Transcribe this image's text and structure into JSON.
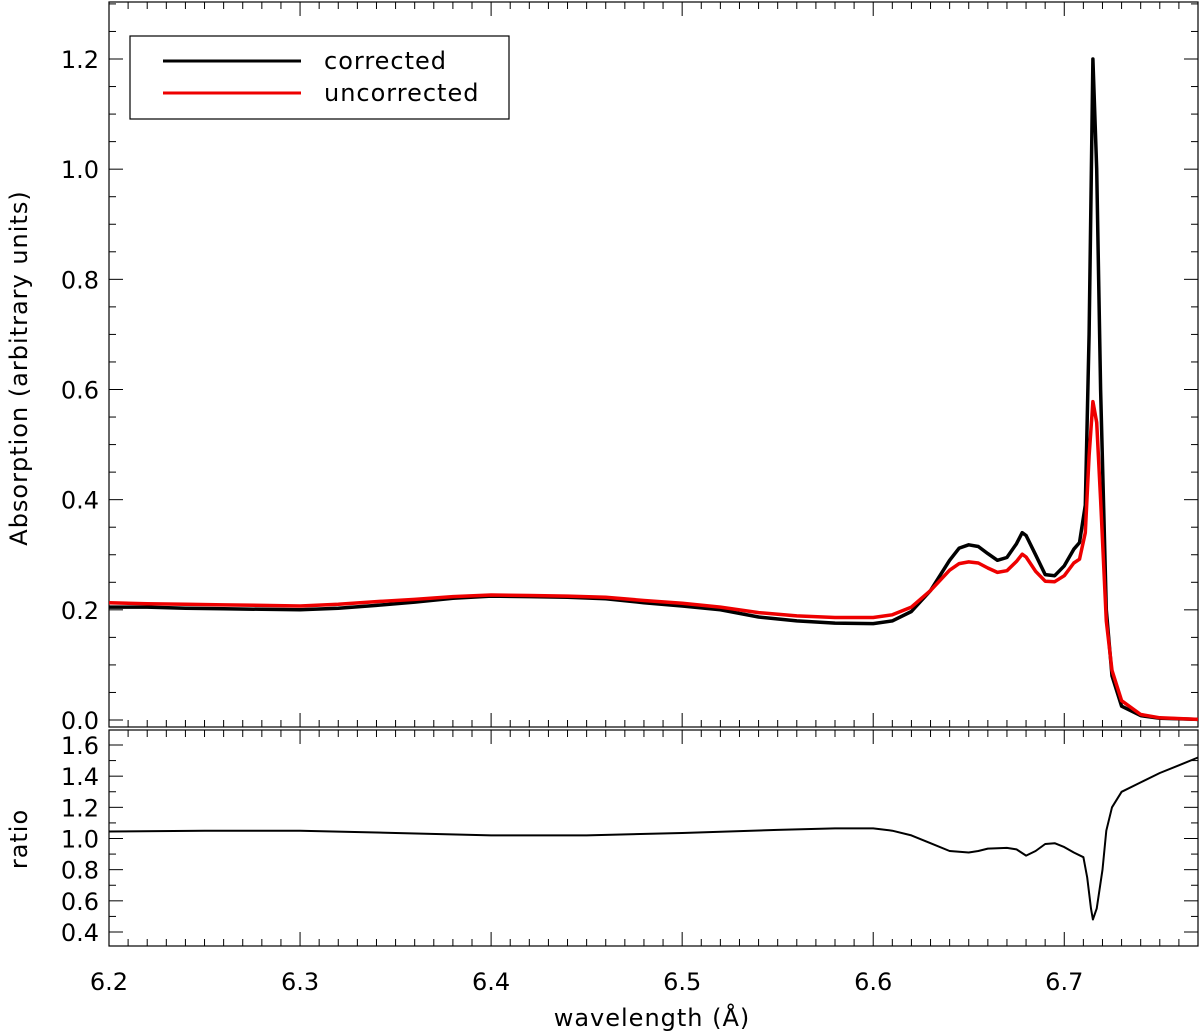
{
  "chart_data": [
    {
      "type": "line",
      "panel": "top",
      "ylabel": "Absorption (arbitrary units)",
      "xlim": [
        6.2,
        6.77
      ],
      "ylim": [
        0.0,
        1.3
      ],
      "yticks": [
        "0.0",
        "0.2",
        "0.4",
        "0.6",
        "0.8",
        "1.0",
        "1.2"
      ],
      "legend": {
        "placement": "top-left"
      },
      "series": [
        {
          "name": "corrected",
          "color": "#000000",
          "points": [
            [
              6.2,
              0.205
            ],
            [
              6.22,
              0.205
            ],
            [
              6.24,
              0.203
            ],
            [
              6.26,
              0.202
            ],
            [
              6.28,
              0.201
            ],
            [
              6.3,
              0.2
            ],
            [
              6.32,
              0.203
            ],
            [
              6.34,
              0.208
            ],
            [
              6.36,
              0.214
            ],
            [
              6.38,
              0.221
            ],
            [
              6.4,
              0.225
            ],
            [
              6.42,
              0.224
            ],
            [
              6.44,
              0.223
            ],
            [
              6.46,
              0.22
            ],
            [
              6.48,
              0.213
            ],
            [
              6.5,
              0.207
            ],
            [
              6.52,
              0.2
            ],
            [
              6.54,
              0.187
            ],
            [
              6.56,
              0.18
            ],
            [
              6.58,
              0.176
            ],
            [
              6.6,
              0.175
            ],
            [
              6.61,
              0.18
            ],
            [
              6.62,
              0.197
            ],
            [
              6.63,
              0.235
            ],
            [
              6.64,
              0.29
            ],
            [
              6.645,
              0.312
            ],
            [
              6.65,
              0.318
            ],
            [
              6.655,
              0.315
            ],
            [
              6.66,
              0.302
            ],
            [
              6.665,
              0.29
            ],
            [
              6.67,
              0.295
            ],
            [
              6.675,
              0.32
            ],
            [
              6.678,
              0.34
            ],
            [
              6.68,
              0.335
            ],
            [
              6.685,
              0.3
            ],
            [
              6.69,
              0.264
            ],
            [
              6.695,
              0.262
            ],
            [
              6.7,
              0.28
            ],
            [
              6.705,
              0.31
            ],
            [
              6.708,
              0.322
            ],
            [
              6.711,
              0.39
            ],
            [
              6.713,
              0.7
            ],
            [
              6.715,
              1.2
            ],
            [
              6.717,
              1.0
            ],
            [
              6.719,
              0.6
            ],
            [
              6.722,
              0.2
            ],
            [
              6.725,
              0.08
            ],
            [
              6.73,
              0.025
            ],
            [
              6.74,
              0.008
            ],
            [
              6.75,
              0.003
            ],
            [
              6.77,
              0.001
            ]
          ]
        },
        {
          "name": "uncorrected",
          "color": "#ee0000",
          "points": [
            [
              6.2,
              0.213
            ],
            [
              6.22,
              0.211
            ],
            [
              6.24,
              0.21
            ],
            [
              6.26,
              0.209
            ],
            [
              6.28,
              0.208
            ],
            [
              6.3,
              0.207
            ],
            [
              6.32,
              0.21
            ],
            [
              6.34,
              0.215
            ],
            [
              6.36,
              0.219
            ],
            [
              6.38,
              0.224
            ],
            [
              6.4,
              0.227
            ],
            [
              6.42,
              0.226
            ],
            [
              6.44,
              0.225
            ],
            [
              6.46,
              0.223
            ],
            [
              6.48,
              0.217
            ],
            [
              6.5,
              0.212
            ],
            [
              6.52,
              0.205
            ],
            [
              6.54,
              0.195
            ],
            [
              6.56,
              0.189
            ],
            [
              6.58,
              0.186
            ],
            [
              6.6,
              0.186
            ],
            [
              6.61,
              0.191
            ],
            [
              6.62,
              0.205
            ],
            [
              6.63,
              0.235
            ],
            [
              6.64,
              0.272
            ],
            [
              6.645,
              0.284
            ],
            [
              6.65,
              0.287
            ],
            [
              6.655,
              0.285
            ],
            [
              6.66,
              0.276
            ],
            [
              6.665,
              0.268
            ],
            [
              6.67,
              0.271
            ],
            [
              6.675,
              0.288
            ],
            [
              6.678,
              0.301
            ],
            [
              6.68,
              0.296
            ],
            [
              6.685,
              0.27
            ],
            [
              6.69,
              0.252
            ],
            [
              6.695,
              0.251
            ],
            [
              6.7,
              0.262
            ],
            [
              6.705,
              0.285
            ],
            [
              6.708,
              0.292
            ],
            [
              6.711,
              0.34
            ],
            [
              6.713,
              0.48
            ],
            [
              6.715,
              0.578
            ],
            [
              6.717,
              0.54
            ],
            [
              6.719,
              0.4
            ],
            [
              6.722,
              0.18
            ],
            [
              6.725,
              0.09
            ],
            [
              6.73,
              0.035
            ],
            [
              6.74,
              0.01
            ],
            [
              6.75,
              0.004
            ],
            [
              6.77,
              0.001
            ]
          ]
        }
      ]
    },
    {
      "type": "line",
      "panel": "bottom",
      "xlabel": "wavelength (Å)",
      "ylabel": "ratio",
      "xlim": [
        6.2,
        6.77
      ],
      "ylim": [
        0.3,
        1.7
      ],
      "xticks": [
        "6.2",
        "6.3",
        "6.4",
        "6.5",
        "6.6",
        "6.7"
      ],
      "yticks": [
        "0.4",
        "0.6",
        "0.8",
        "1.0",
        "1.2",
        "1.4",
        "1.6"
      ],
      "series": [
        {
          "color": "#000000",
          "points": [
            [
              6.2,
              1.045
            ],
            [
              6.25,
              1.05
            ],
            [
              6.3,
              1.05
            ],
            [
              6.35,
              1.035
            ],
            [
              6.4,
              1.02
            ],
            [
              6.45,
              1.02
            ],
            [
              6.5,
              1.035
            ],
            [
              6.55,
              1.055
            ],
            [
              6.58,
              1.065
            ],
            [
              6.6,
              1.065
            ],
            [
              6.61,
              1.05
            ],
            [
              6.62,
              1.02
            ],
            [
              6.63,
              0.97
            ],
            [
              6.64,
              0.92
            ],
            [
              6.65,
              0.91
            ],
            [
              6.655,
              0.92
            ],
            [
              6.66,
              0.935
            ],
            [
              6.67,
              0.94
            ],
            [
              6.675,
              0.93
            ],
            [
              6.68,
              0.89
            ],
            [
              6.685,
              0.92
            ],
            [
              6.69,
              0.965
            ],
            [
              6.695,
              0.97
            ],
            [
              6.7,
              0.945
            ],
            [
              6.705,
              0.91
            ],
            [
              6.71,
              0.88
            ],
            [
              6.712,
              0.75
            ],
            [
              6.714,
              0.55
            ],
            [
              6.715,
              0.48
            ],
            [
              6.717,
              0.55
            ],
            [
              6.72,
              0.8
            ],
            [
              6.722,
              1.05
            ],
            [
              6.725,
              1.2
            ],
            [
              6.73,
              1.3
            ],
            [
              6.74,
              1.36
            ],
            [
              6.75,
              1.42
            ],
            [
              6.76,
              1.47
            ],
            [
              6.77,
              1.52
            ]
          ]
        }
      ]
    }
  ]
}
